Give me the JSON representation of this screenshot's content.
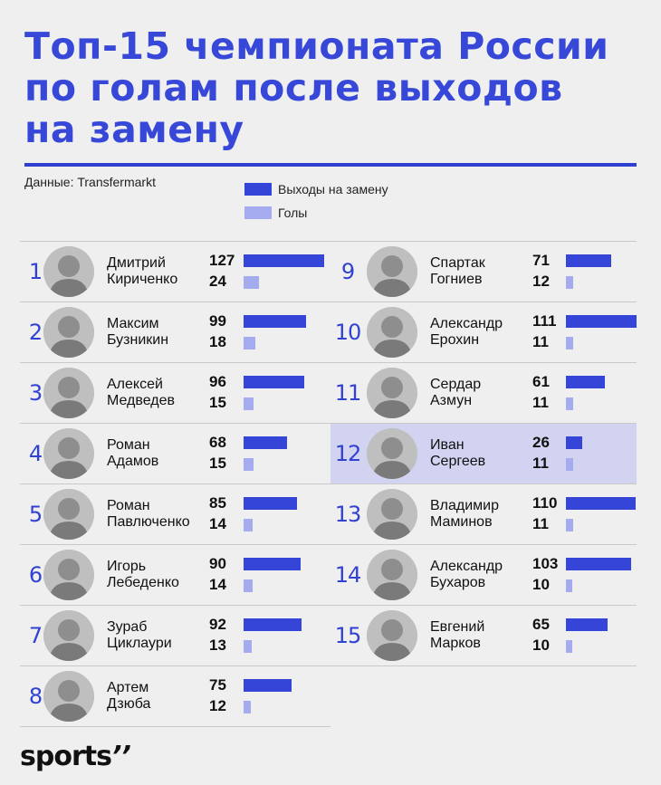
{
  "header": {
    "title_lines": [
      "Топ-15 чемпионата России",
      "по голам после выходов",
      "на замену"
    ],
    "source": "Данные: Transfermarkt"
  },
  "legend": {
    "subs_label": "Выходы на замену",
    "goals_label": "Голы"
  },
  "colors": {
    "title": "#3748d8",
    "subs_bar": "#3445d8",
    "goals_bar": "#a4abee",
    "highlight": "#d1d3f1"
  },
  "brand": {
    "logo_text": "sports",
    "logo_mark": "’’"
  },
  "chart_data": {
    "type": "bar",
    "highlighted_rank": "12",
    "series": [
      {
        "name": "Выходы на замену",
        "key": "subs"
      },
      {
        "name": "Голы",
        "key": "goals"
      }
    ],
    "rows": [
      {
        "rank": "1",
        "first": "Дмитрий",
        "last": "Кириченко",
        "subs": 127,
        "goals": 24
      },
      {
        "rank": "2",
        "first": "Максим",
        "last": "Бузникин",
        "subs": 99,
        "goals": 18
      },
      {
        "rank": "3",
        "first": "Алексей",
        "last": "Медведев",
        "subs": 96,
        "goals": 15
      },
      {
        "rank": "4",
        "first": "Роман",
        "last": "Адамов",
        "subs": 68,
        "goals": 15
      },
      {
        "rank": "5",
        "first": "Роман",
        "last": "Павлюченко",
        "subs": 85,
        "goals": 14
      },
      {
        "rank": "6",
        "first": "Игорь",
        "last": "Лебеденко",
        "subs": 90,
        "goals": 14
      },
      {
        "rank": "7",
        "first": "Зураб",
        "last": "Циклаури",
        "subs": 92,
        "goals": 13
      },
      {
        "rank": "8",
        "first": "Артем",
        "last": "Дзюба",
        "subs": 75,
        "goals": 12
      },
      {
        "rank": "9",
        "first": "Спартак",
        "last": "Гогниев",
        "subs": 71,
        "goals": 12
      },
      {
        "rank": "10",
        "first": "Александр",
        "last": "Ерохин",
        "subs": 111,
        "goals": 11
      },
      {
        "rank": "11",
        "first": "Сердар",
        "last": "Азмун",
        "subs": 61,
        "goals": 11
      },
      {
        "rank": "12",
        "first": "Иван",
        "last": "Сергеев",
        "subs": 26,
        "goals": 11
      },
      {
        "rank": "13",
        "first": "Владимир",
        "last": "Маминов",
        "subs": 110,
        "goals": 11
      },
      {
        "rank": "14",
        "first": "Александр",
        "last": "Бухаров",
        "subs": 103,
        "goals": 10
      },
      {
        "rank": "15",
        "first": "Евгений",
        "last": "Марков",
        "subs": 65,
        "goals": 10
      }
    ]
  }
}
